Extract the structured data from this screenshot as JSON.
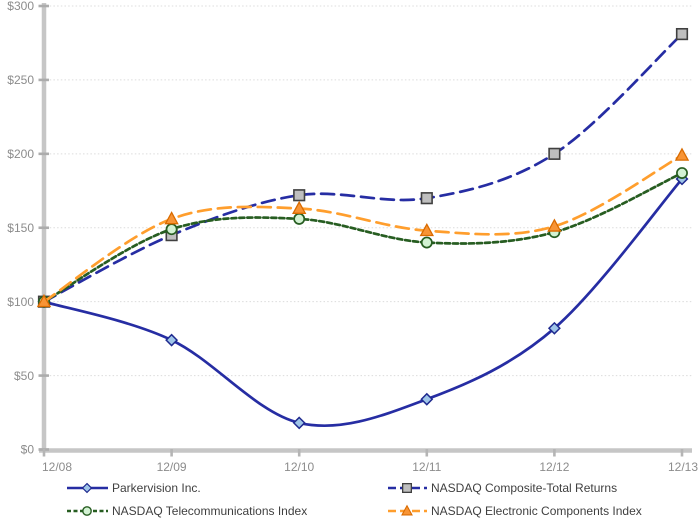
{
  "chart_data": {
    "type": "line",
    "title": "",
    "xlabel": "",
    "ylabel": "",
    "categories": [
      "12/08",
      "12/09",
      "12/10",
      "12/11",
      "12/12",
      "12/13"
    ],
    "series": [
      {
        "name": "Parkervision Inc.",
        "values": [
          100,
          74,
          18,
          34,
          82,
          183
        ],
        "color": "#262DA3",
        "line_style": "solid",
        "marker": "diamond",
        "marker_fill": "#9FC5E8",
        "marker_stroke": "#1F2A8F"
      },
      {
        "name": "NASDAQ Composite-Total Returns",
        "values": [
          100,
          145,
          172,
          170,
          200,
          281
        ],
        "color": "#262DA3",
        "line_style": "long-dash",
        "marker": "square",
        "marker_fill": "#BFBFBF",
        "marker_stroke": "#404040"
      },
      {
        "name": "NASDAQ Telecommunications Index",
        "values": [
          100,
          149,
          156,
          140,
          147,
          187
        ],
        "color": "#275D21",
        "line_style": "short-dash",
        "marker": "circle",
        "marker_fill": "#D3F2D3",
        "marker_stroke": "#275D21"
      },
      {
        "name": "NASDAQ Electronic Components Index",
        "values": [
          100,
          156,
          163,
          148,
          151,
          199
        ],
        "color": "#FF9E2D",
        "line_style": "long-dash",
        "marker": "triangle",
        "marker_fill": "#F89435",
        "marker_stroke": "#D96B00"
      }
    ],
    "ylim": [
      0,
      300
    ],
    "ytick_step": 50,
    "ytick_labels": [
      "$0",
      "$50",
      "$100",
      "$150",
      "$200",
      "$250",
      "$300"
    ],
    "grid": "horizontal-dotted",
    "legend_position": "bottom",
    "smoothed_lines": true
  }
}
